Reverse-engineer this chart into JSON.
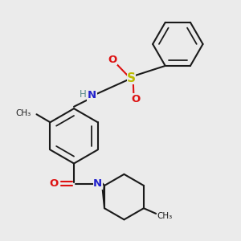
{
  "bg_color": "#ebebeb",
  "bond_color": "#1a1a1a",
  "n_color": "#2020cc",
  "o_color": "#dd1111",
  "s_color": "#bbbb00",
  "h_color": "#558888",
  "lw": 1.5,
  "figsize": [
    3.0,
    3.0
  ],
  "dpi": 100,
  "xlim": [
    0,
    10
  ],
  "ylim": [
    0,
    10
  ]
}
